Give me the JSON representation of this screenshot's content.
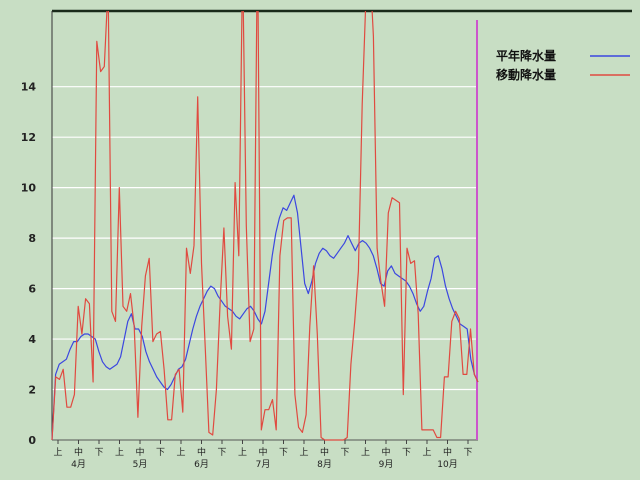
{
  "chart_data": {
    "type": "line",
    "title": "",
    "xlabel": "",
    "ylabel": "",
    "ylim": [
      0,
      17
    ],
    "y_ticks": [
      "0",
      "2",
      "4",
      "6",
      "8",
      "10",
      "12",
      "14"
    ],
    "x_period_labels": [
      "上",
      "中",
      "下",
      "上",
      "中",
      "下",
      "上",
      "中",
      "下",
      "上",
      "中",
      "下",
      "上",
      "中",
      "下",
      "上",
      "中",
      "下",
      "上",
      "中",
      "下"
    ],
    "month_labels": [
      "4月",
      "5月",
      "6月",
      "7月",
      "8月",
      "9月",
      "10月"
    ],
    "grid": true,
    "legend_position": "top-right",
    "series": [
      {
        "name": "平年降水量",
        "color": "#3b47e0",
        "values": [
          0,
          2.6,
          3.0,
          3.1,
          3.2,
          3.6,
          3.9,
          3.9,
          4.1,
          4.2,
          4.2,
          4.1,
          4.0,
          3.5,
          3.1,
          2.9,
          2.8,
          2.9,
          3.0,
          3.3,
          4.0,
          4.7,
          5.0,
          4.4,
          4.4,
          4.1,
          3.5,
          3.1,
          2.8,
          2.5,
          2.3,
          2.1,
          2.0,
          2.2,
          2.5,
          2.8,
          2.9,
          3.2,
          3.8,
          4.4,
          4.9,
          5.3,
          5.6,
          5.9,
          6.1,
          6.0,
          5.7,
          5.5,
          5.3,
          5.2,
          5.1,
          4.9,
          4.8,
          5.0,
          5.2,
          5.3,
          5.1,
          4.8,
          4.6,
          5.1,
          6.2,
          7.3,
          8.2,
          8.8,
          9.2,
          9.1,
          9.4,
          9.7,
          9.0,
          7.6,
          6.2,
          5.8,
          6.3,
          7.0,
          7.4,
          7.6,
          7.5,
          7.3,
          7.2,
          7.4,
          7.6,
          7.8,
          8.1,
          7.8,
          7.5,
          7.8,
          7.9,
          7.8,
          7.6,
          7.3,
          6.8,
          6.2,
          6.1,
          6.7,
          6.9,
          6.6,
          6.5,
          6.4,
          6.3,
          6.1,
          5.8,
          5.4,
          5.1,
          5.3,
          5.9,
          6.4,
          7.2,
          7.3,
          6.8,
          6.1,
          5.6,
          5.2,
          4.9,
          4.6,
          4.5,
          4.4,
          3.2,
          2.6,
          2.3
        ]
      },
      {
        "name": "移動降水量",
        "color": "#e04a40",
        "values": [
          0,
          2.5,
          2.4,
          2.8,
          1.3,
          1.3,
          1.8,
          5.3,
          4.2,
          5.6,
          5.4,
          2.3,
          15.8,
          14.6,
          14.8,
          18.0,
          5.1,
          4.7,
          10.0,
          5.3,
          5.1,
          5.8,
          4.5,
          0.9,
          4.5,
          6.5,
          7.2,
          3.9,
          4.2,
          4.3,
          2.8,
          0.8,
          0.8,
          2.6,
          2.8,
          1.1,
          7.6,
          6.6,
          7.7,
          13.6,
          7.0,
          3.7,
          0.3,
          0.2,
          2.0,
          5.5,
          8.4,
          4.9,
          3.6,
          10.2,
          7.3,
          19.0,
          8.5,
          3.9,
          4.4,
          20.0,
          0.4,
          1.2,
          1.2,
          1.6,
          0.4,
          7.3,
          8.7,
          8.8,
          8.8,
          1.8,
          0.5,
          0.3,
          1.0,
          4.5,
          6.9,
          4.2,
          0.1,
          0.0,
          0.0,
          0.0,
          0.0,
          0.0,
          0.0,
          0.1,
          3.0,
          4.7,
          6.7,
          13.3,
          17.5,
          19.0,
          16.0,
          7.6,
          6.3,
          5.3,
          9.0,
          9.6,
          9.5,
          9.4,
          1.8,
          7.6,
          7.0,
          7.1,
          5.0,
          0.4,
          0.4,
          0.4,
          0.4,
          0.1,
          0.1,
          2.5,
          2.5,
          4.7,
          5.1,
          4.8,
          2.6,
          2.6,
          4.4,
          2.6,
          2.3
        ]
      }
    ]
  }
}
